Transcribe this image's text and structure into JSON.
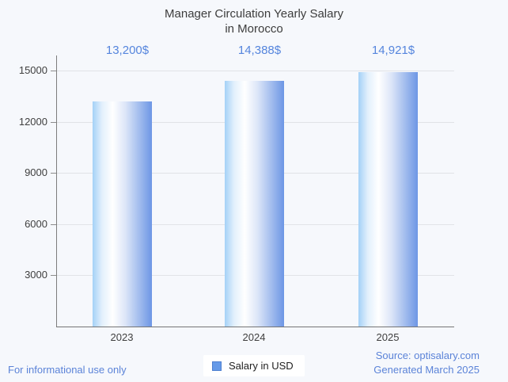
{
  "page": {
    "background_color": "#f6f8fc",
    "accent_blue": "#5585dd",
    "footer_blue": "#5b83d8"
  },
  "header": {
    "title_line1": "Manager Circulation Yearly Salary",
    "title_line2": "in Morocco"
  },
  "chart_data": {
    "type": "bar",
    "title": "Manager Circulation Yearly Salary in Morocco",
    "categories": [
      "2023",
      "2024",
      "2025"
    ],
    "series": [
      {
        "name": "Salary in USD",
        "values": [
          13200,
          14388,
          14921
        ]
      }
    ],
    "annotations": [
      "13,200$",
      "14,388$",
      "14,921$"
    ],
    "annotation_color": "#5585dd",
    "xlabel": "",
    "ylabel": "",
    "ylim": [
      0,
      15000
    ],
    "ytick_labels_top_to_bottom": [
      "15000",
      "12000",
      "9000",
      "6000",
      "3000"
    ],
    "grid": true,
    "legend_position": "bottom",
    "bar_gradient": [
      "#a4d1f7",
      "#ffffff",
      "#6d96e5"
    ]
  },
  "legend": {
    "swatch_color": "#669ae8",
    "label": "Salary in USD"
  },
  "footer": {
    "disclaimer": "For informational use only",
    "source_line1": "Source: optisalary.com",
    "source_line2": "Generated March 2025"
  }
}
